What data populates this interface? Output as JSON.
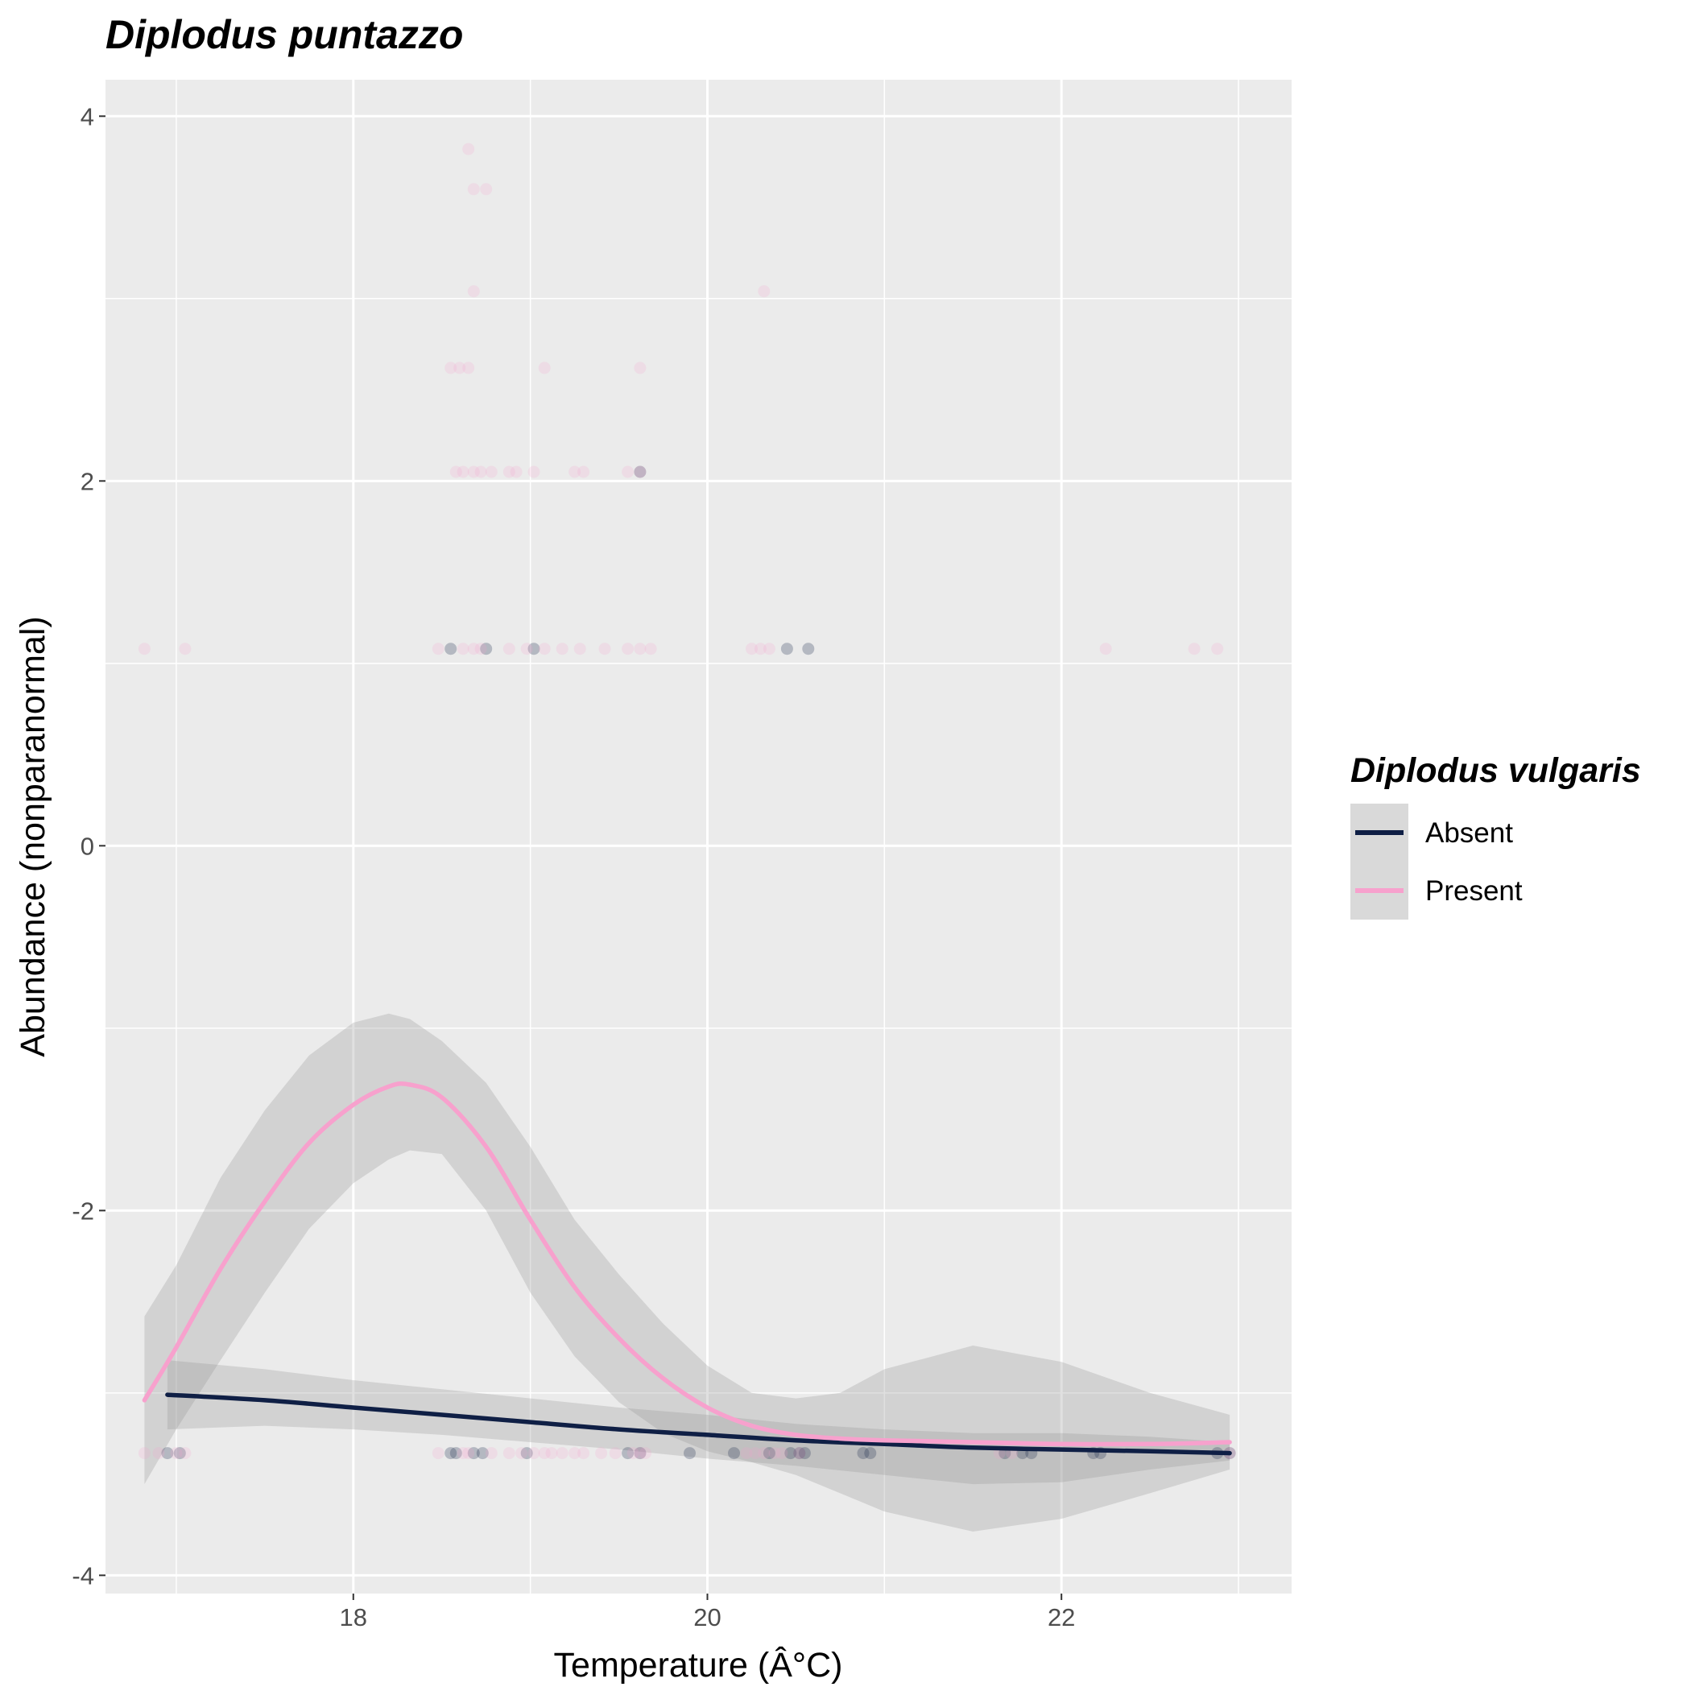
{
  "chart_data": {
    "type": "scatter",
    "title": "Diplodus puntazzo",
    "xlabel": "Temperature (Â°C)",
    "ylabel": "Abundance (nonparanormal)",
    "xlim": [
      16.6,
      23.3
    ],
    "ylim": [
      -4.1,
      4.2
    ],
    "x_ticks": [
      18,
      20,
      22
    ],
    "y_ticks": [
      -4,
      -2,
      0,
      2,
      4
    ],
    "x_tick_labels": [
      "18",
      "20",
      "22"
    ],
    "y_tick_labels": [
      "-4",
      "-2",
      "0",
      "2",
      "4"
    ],
    "grid": true,
    "legend": {
      "title": "Diplodus vulgaris",
      "position": "right",
      "entries": [
        {
          "label": "Absent",
          "color": "#0f1f45"
        },
        {
          "label": "Present",
          "color": "#f7a1cd"
        }
      ]
    },
    "series": [
      {
        "name": "Absent",
        "color": "#0f1f45",
        "point_opacity": 0.25,
        "points": [
          [
            16.95,
            -3.33
          ],
          [
            17.02,
            -3.33
          ],
          [
            18.55,
            -3.33
          ],
          [
            18.58,
            -3.33
          ],
          [
            18.68,
            -3.33
          ],
          [
            18.73,
            -3.33
          ],
          [
            18.98,
            -3.33
          ],
          [
            19.55,
            -3.33
          ],
          [
            19.62,
            -3.33
          ],
          [
            19.9,
            -3.33
          ],
          [
            20.15,
            -3.33
          ],
          [
            20.35,
            -3.33
          ],
          [
            20.47,
            -3.33
          ],
          [
            20.52,
            -3.33
          ],
          [
            20.55,
            -3.33
          ],
          [
            20.88,
            -3.33
          ],
          [
            20.92,
            -3.33
          ],
          [
            21.68,
            -3.33
          ],
          [
            21.78,
            -3.33
          ],
          [
            21.83,
            -3.33
          ],
          [
            22.18,
            -3.33
          ],
          [
            22.22,
            -3.33
          ],
          [
            22.88,
            -3.33
          ],
          [
            22.95,
            -3.33
          ],
          [
            18.55,
            1.08
          ],
          [
            18.75,
            1.08
          ],
          [
            19.02,
            1.08
          ],
          [
            20.45,
            1.08
          ],
          [
            20.57,
            1.08
          ],
          [
            19.62,
            2.05
          ]
        ],
        "smooth": {
          "x": [
            16.95,
            17.5,
            18.0,
            18.5,
            19.0,
            19.5,
            20.0,
            20.5,
            21.0,
            21.5,
            22.0,
            22.5,
            22.95
          ],
          "y": [
            -3.01,
            -3.04,
            -3.08,
            -3.12,
            -3.16,
            -3.2,
            -3.23,
            -3.26,
            -3.28,
            -3.3,
            -3.31,
            -3.32,
            -3.33
          ],
          "ci_lower": [
            -3.2,
            -3.18,
            -3.2,
            -3.23,
            -3.27,
            -3.31,
            -3.36,
            -3.4,
            -3.45,
            -3.5,
            -3.49,
            -3.42,
            -3.37
          ],
          "ci_upper": [
            -2.82,
            -2.87,
            -2.93,
            -2.98,
            -3.03,
            -3.08,
            -3.12,
            -3.17,
            -3.2,
            -3.22,
            -3.22,
            -3.24,
            -3.27
          ]
        }
      },
      {
        "name": "Present",
        "color": "#f7a1cd",
        "point_opacity": 0.2,
        "points": [
          [
            16.82,
            -3.33
          ],
          [
            16.9,
            -3.33
          ],
          [
            17.0,
            -3.33
          ],
          [
            17.05,
            -3.33
          ],
          [
            18.48,
            -3.33
          ],
          [
            18.62,
            -3.33
          ],
          [
            18.65,
            -3.33
          ],
          [
            18.78,
            -3.33
          ],
          [
            18.88,
            -3.33
          ],
          [
            18.95,
            -3.33
          ],
          [
            19.02,
            -3.33
          ],
          [
            19.08,
            -3.33
          ],
          [
            19.12,
            -3.33
          ],
          [
            19.18,
            -3.33
          ],
          [
            19.25,
            -3.33
          ],
          [
            19.3,
            -3.33
          ],
          [
            19.4,
            -3.33
          ],
          [
            19.48,
            -3.33
          ],
          [
            19.58,
            -3.33
          ],
          [
            19.62,
            -3.33
          ],
          [
            19.65,
            -3.33
          ],
          [
            20.22,
            -3.33
          ],
          [
            20.27,
            -3.33
          ],
          [
            20.32,
            -3.33
          ],
          [
            20.38,
            -3.33
          ],
          [
            20.42,
            -3.33
          ],
          [
            20.52,
            -3.33
          ],
          [
            21.65,
            -3.33
          ],
          [
            21.72,
            -3.33
          ],
          [
            22.95,
            -3.33
          ],
          [
            16.82,
            1.08
          ],
          [
            17.05,
            1.08
          ],
          [
            18.48,
            1.08
          ],
          [
            18.62,
            1.08
          ],
          [
            18.68,
            1.08
          ],
          [
            18.72,
            1.08
          ],
          [
            18.88,
            1.08
          ],
          [
            18.98,
            1.08
          ],
          [
            19.08,
            1.08
          ],
          [
            19.18,
            1.08
          ],
          [
            19.28,
            1.08
          ],
          [
            19.42,
            1.08
          ],
          [
            19.55,
            1.08
          ],
          [
            19.62,
            1.08
          ],
          [
            19.68,
            1.08
          ],
          [
            20.25,
            1.08
          ],
          [
            20.3,
            1.08
          ],
          [
            20.35,
            1.08
          ],
          [
            22.25,
            1.08
          ],
          [
            22.75,
            1.08
          ],
          [
            22.88,
            1.08
          ],
          [
            18.58,
            2.05
          ],
          [
            18.62,
            2.05
          ],
          [
            18.68,
            2.05
          ],
          [
            18.72,
            2.05
          ],
          [
            18.78,
            2.05
          ],
          [
            18.88,
            2.05
          ],
          [
            18.92,
            2.05
          ],
          [
            19.02,
            2.05
          ],
          [
            19.25,
            2.05
          ],
          [
            19.3,
            2.05
          ],
          [
            19.55,
            2.05
          ],
          [
            19.62,
            2.05
          ],
          [
            18.55,
            2.62
          ],
          [
            18.6,
            2.62
          ],
          [
            18.65,
            2.62
          ],
          [
            19.08,
            2.62
          ],
          [
            19.62,
            2.62
          ],
          [
            18.68,
            3.04
          ],
          [
            20.32,
            3.04
          ],
          [
            18.68,
            3.6
          ],
          [
            18.75,
            3.6
          ],
          [
            18.65,
            3.82
          ]
        ],
        "smooth": {
          "x": [
            16.82,
            17.0,
            17.25,
            17.5,
            17.75,
            18.0,
            18.2,
            18.32,
            18.5,
            18.75,
            19.0,
            19.25,
            19.5,
            19.75,
            20.0,
            20.25,
            20.5,
            20.75,
            21.0,
            21.5,
            22.0,
            22.5,
            22.95
          ],
          "y": [
            -3.04,
            -2.75,
            -2.32,
            -1.95,
            -1.63,
            -1.42,
            -1.32,
            -1.31,
            -1.38,
            -1.65,
            -2.05,
            -2.42,
            -2.7,
            -2.92,
            -3.08,
            -3.18,
            -3.23,
            -3.25,
            -3.26,
            -3.27,
            -3.28,
            -3.28,
            -3.27
          ],
          "ci_lower": [
            -3.5,
            -3.2,
            -2.82,
            -2.45,
            -2.1,
            -1.85,
            -1.72,
            -1.67,
            -1.69,
            -2.0,
            -2.45,
            -2.8,
            -3.05,
            -3.22,
            -3.32,
            -3.38,
            -3.45,
            -3.55,
            -3.65,
            -3.76,
            -3.69,
            -3.55,
            -3.42
          ],
          "ci_upper": [
            -2.58,
            -2.3,
            -1.82,
            -1.45,
            -1.15,
            -0.97,
            -0.92,
            -0.95,
            -1.07,
            -1.3,
            -1.65,
            -2.05,
            -2.35,
            -2.62,
            -2.85,
            -3.0,
            -3.03,
            -3.0,
            -2.87,
            -2.74,
            -2.83,
            -3.0,
            -3.12
          ]
        }
      }
    ]
  }
}
